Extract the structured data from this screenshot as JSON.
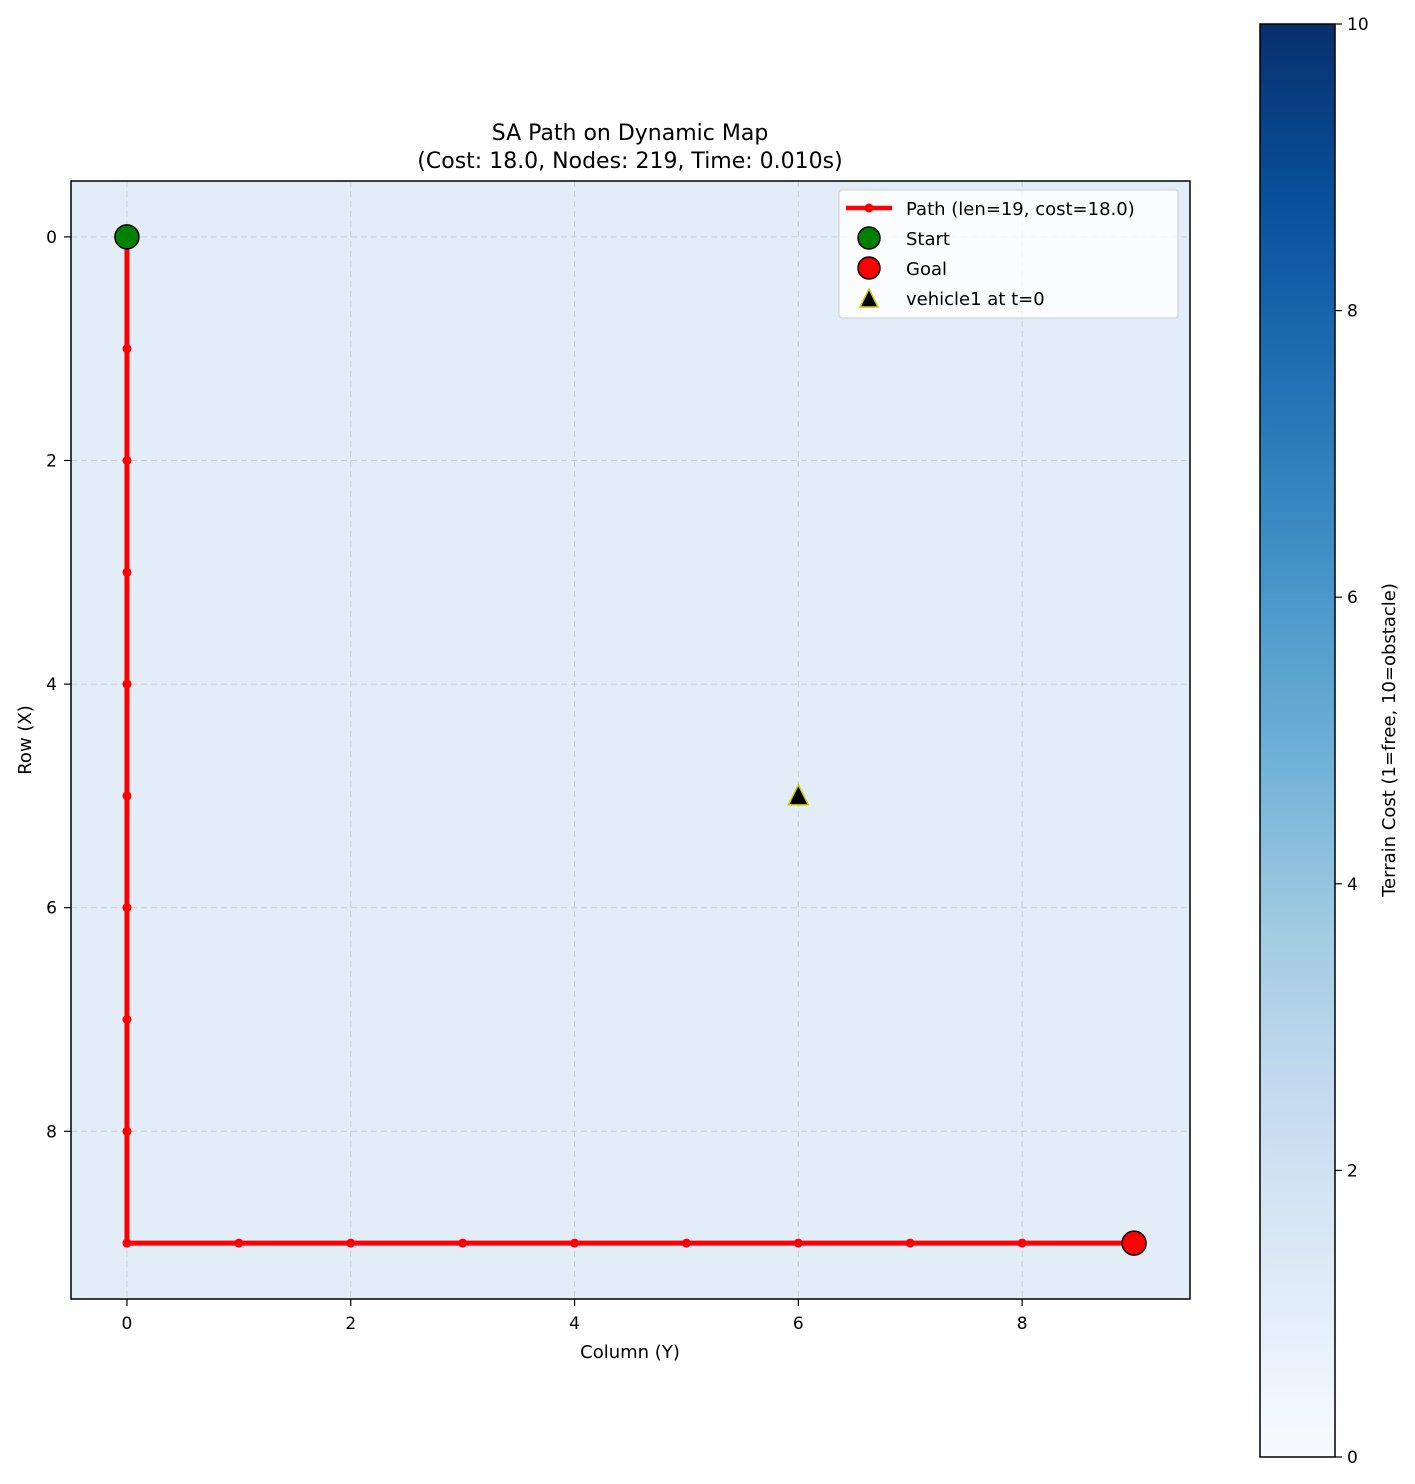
{
  "chart_data": {
    "type": "scatter",
    "title_line1": "SA Path on Dynamic Map",
    "title_line2": "(Cost: 18.0, Nodes: 219, Time: 0.010s)",
    "xlabel": "Column (Y)",
    "ylabel": "Row (X)",
    "xlim": [
      -0.5,
      9.5
    ],
    "ylim": [
      9.5,
      -0.5
    ],
    "y_inverted": true,
    "xticks": [
      0,
      2,
      4,
      6,
      8
    ],
    "yticks": [
      0,
      2,
      4,
      6,
      8
    ],
    "grid": true,
    "terrain_value": 1,
    "path": {
      "name": "Path (len=19, cost=18.0)",
      "color": "#ff0000",
      "points": [
        {
          "col": 0,
          "row": 0
        },
        {
          "col": 0,
          "row": 1
        },
        {
          "col": 0,
          "row": 2
        },
        {
          "col": 0,
          "row": 3
        },
        {
          "col": 0,
          "row": 4
        },
        {
          "col": 0,
          "row": 5
        },
        {
          "col": 0,
          "row": 6
        },
        {
          "col": 0,
          "row": 7
        },
        {
          "col": 0,
          "row": 8
        },
        {
          "col": 0,
          "row": 9
        },
        {
          "col": 1,
          "row": 9
        },
        {
          "col": 2,
          "row": 9
        },
        {
          "col": 3,
          "row": 9
        },
        {
          "col": 4,
          "row": 9
        },
        {
          "col": 5,
          "row": 9
        },
        {
          "col": 6,
          "row": 9
        },
        {
          "col": 7,
          "row": 9
        },
        {
          "col": 8,
          "row": 9
        },
        {
          "col": 9,
          "row": 9
        }
      ]
    },
    "start": {
      "name": "Start",
      "col": 0,
      "row": 0,
      "color": "#008000"
    },
    "goal": {
      "name": "Goal",
      "col": 9,
      "row": 9,
      "color": "#ff0000"
    },
    "vehicle": {
      "name": "vehicle1 at t=0",
      "col": 6,
      "row": 5,
      "color": "#000000",
      "edge_color": "#cccc00"
    },
    "legend_position": "upper right",
    "colorbar": {
      "label": "Terrain Cost (1=free, 10=obstacle)",
      "range": [
        0,
        10
      ],
      "ticks": [
        0,
        2,
        4,
        6,
        8,
        10
      ],
      "colormap": "Blues",
      "low_color": "#f7fbff",
      "high_color": "#08306b"
    }
  }
}
